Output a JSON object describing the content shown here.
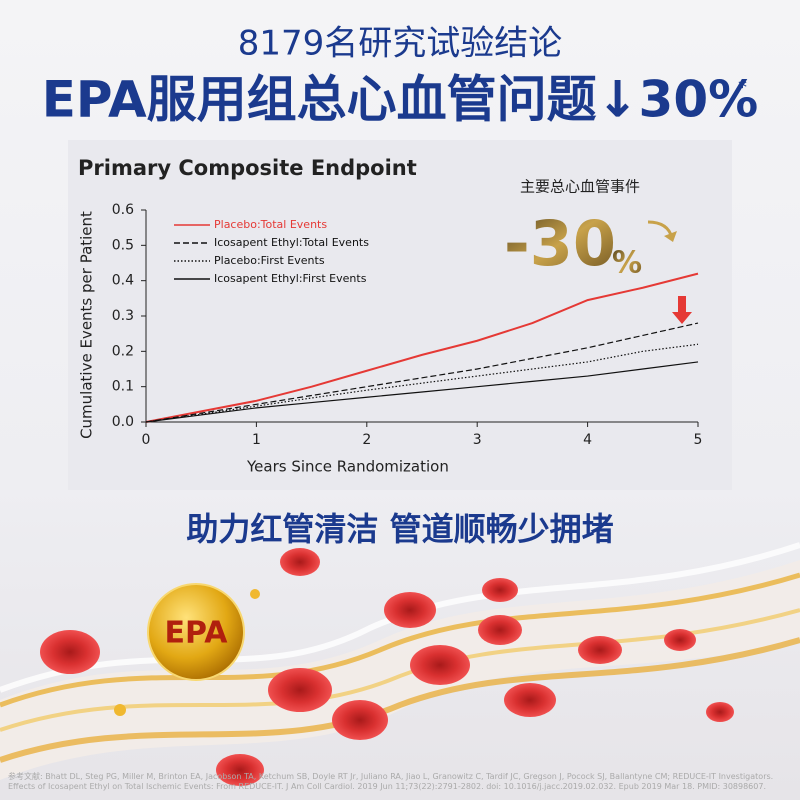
{
  "header": {
    "subtitle": "8179名研究试验结论",
    "title": "EPA服用组总心血管问题↓30%",
    "note_mark": "*"
  },
  "chart_data": {
    "type": "line",
    "title": "Primary Composite Endpoint",
    "x_label": "Years Since Randomization",
    "y_label": "Cumulative Events per Patient",
    "x": [
      0,
      0.5,
      1,
      1.5,
      2,
      2.5,
      3,
      3.5,
      4,
      4.5,
      5
    ],
    "series": [
      {
        "name": "Placebo:Total Events",
        "color": "#e53935",
        "dash": "solid",
        "values": [
          0,
          0.03,
          0.06,
          0.1,
          0.145,
          0.19,
          0.23,
          0.28,
          0.345,
          0.38,
          0.42
        ]
      },
      {
        "name": "Icosapent Ethyl:Total Events",
        "color": "#111111",
        "dash": "dashed",
        "values": [
          0,
          0.025,
          0.05,
          0.075,
          0.1,
          0.125,
          0.15,
          0.18,
          0.21,
          0.245,
          0.28
        ]
      },
      {
        "name": "Placebo:First Events",
        "color": "#111111",
        "dash": "dotted",
        "values": [
          0,
          0.022,
          0.045,
          0.068,
          0.09,
          0.11,
          0.13,
          0.15,
          0.17,
          0.2,
          0.22
        ]
      },
      {
        "name": "Icosapent Ethyl:First Events",
        "color": "#111111",
        "dash": "solid",
        "values": [
          0,
          0.02,
          0.04,
          0.055,
          0.07,
          0.085,
          0.1,
          0.115,
          0.13,
          0.15,
          0.17
        ]
      }
    ],
    "xlim": [
      0,
      5
    ],
    "xticks": [
      0,
      1,
      2,
      3,
      4,
      5
    ],
    "ylim": [
      0,
      0.6
    ],
    "yticks": [
      {
        "value": 0,
        "label": "0.0"
      },
      0.1,
      0.2,
      0.3,
      0.4,
      0.5,
      0.6
    ],
    "legend": "upper left",
    "annotation_title": "主要总心血管事件",
    "annotation_number": "-30",
    "annotation_unit": "%"
  },
  "tagline": "助力红管清洁 管道顺畅少拥堵",
  "badge": "EPA",
  "reference": "参考文献: Bhatt DL, Steg PG, Miller M, Brinton EA, Jacobson TA, Ketchum SB, Doyle RT Jr, Juliano RA, Jiao L, Granowitz C, Tardif JC, Gregson J, Pocock SJ, Ballantyne CM; REDUCE-IT Investigators. Effects of Icosapent Ethyl on Total Ischemic Events: From REDUCE-IT. J Am Coll Cardiol. 2019 Jun 11;73(22):2791-2802. doi: 10.1016/j.jacc.2019.02.032. Epub 2019 Mar 18. PMID: 30898607."
}
